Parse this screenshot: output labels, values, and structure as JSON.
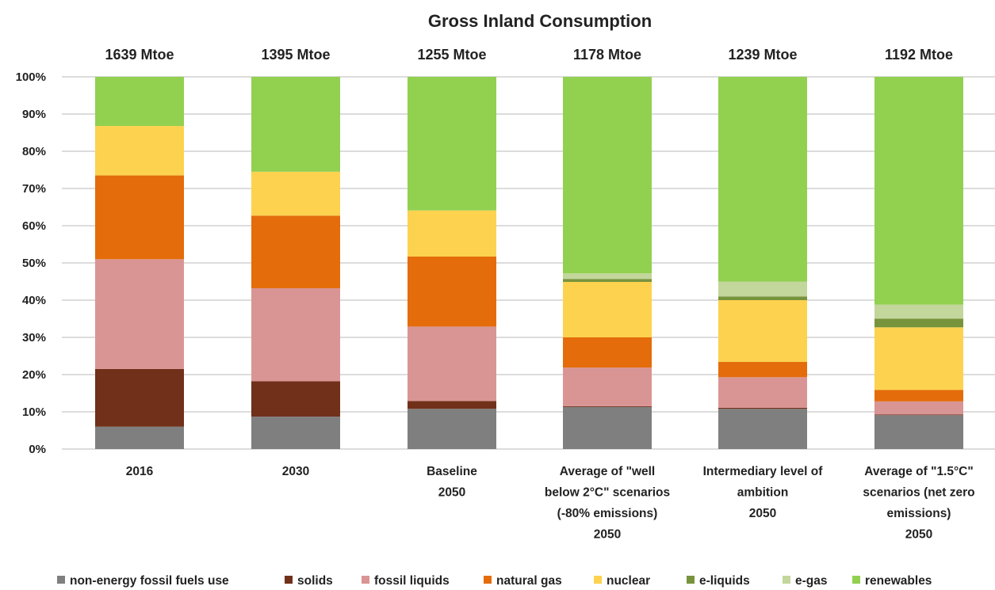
{
  "chart_data": {
    "type": "bar",
    "stacked": true,
    "title": "Gross Inland Consumption",
    "ylim": [
      0,
      100
    ],
    "yticks": [
      "0%",
      "10%",
      "20%",
      "30%",
      "40%",
      "50%",
      "60%",
      "70%",
      "80%",
      "90%",
      "100%"
    ],
    "grid": true,
    "legend_position": "bottom",
    "totals": [
      "1639 Mtoe",
      "1395 Mtoe",
      "1255 Mtoe",
      "1178 Mtoe",
      "1239 Mtoe",
      "1192 Mtoe"
    ],
    "categories": [
      [
        "2016"
      ],
      [
        "2030"
      ],
      [
        "Baseline",
        "2050"
      ],
      [
        "Average of \"well",
        "below 2°C\" scenarios",
        "(-80% emissions)",
        "2050"
      ],
      [
        "Intermediary level of",
        "ambition",
        "2050"
      ],
      [
        "Average of \"1.5°C\"",
        "scenarios (net zero",
        "emissions)",
        "2050"
      ]
    ],
    "series": [
      {
        "name": "non-energy fossil fuels use",
        "color": "#7f7f7f",
        "values": [
          6,
          8.7,
          10.8,
          11.3,
          10.8,
          9.1
        ]
      },
      {
        "name": "solids",
        "color": "#70301a",
        "values": [
          15.5,
          9.5,
          2.1,
          0.2,
          0.3,
          0.2
        ]
      },
      {
        "name": "fossil liquids",
        "color": "#d99594",
        "values": [
          29.5,
          25,
          20,
          10.4,
          8.2,
          3.5
        ]
      },
      {
        "name": "natural gas",
        "color": "#e46c0a",
        "values": [
          22.5,
          19.5,
          18.8,
          8.1,
          4.1,
          3.1
        ]
      },
      {
        "name": "nuclear",
        "color": "#fcd24f",
        "values": [
          13.3,
          11.8,
          12.4,
          14.9,
          16.6,
          16.8
        ]
      },
      {
        "name": "e-liquids",
        "color": "#77933c",
        "values": [
          0,
          0,
          0,
          0.8,
          1,
          2.3
        ]
      },
      {
        "name": "e-gas",
        "color": "#c3d69b",
        "values": [
          0,
          0,
          0,
          1.5,
          4,
          3.8
        ]
      },
      {
        "name": "renewables",
        "color": "#92d050",
        "values": [
          13.2,
          25.5,
          35.9,
          52.8,
          55,
          61.2
        ]
      }
    ]
  }
}
